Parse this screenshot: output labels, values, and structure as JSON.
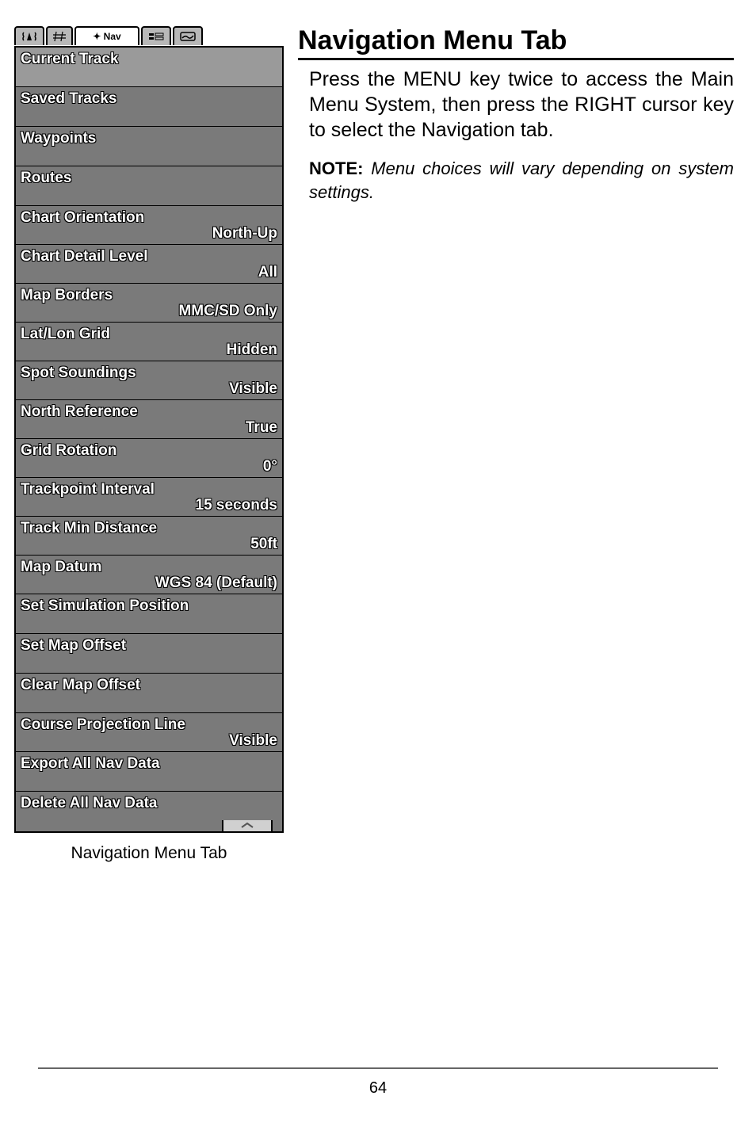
{
  "tabs": {
    "active_label": "✦ Nav"
  },
  "menu": [
    {
      "label": "Current Track",
      "value": "",
      "selected": true,
      "short": false
    },
    {
      "label": "Saved Tracks",
      "value": "",
      "short": false
    },
    {
      "label": "Waypoints",
      "value": "",
      "short": false
    },
    {
      "label": "Routes",
      "value": "",
      "short": false
    },
    {
      "label": "Chart Orientation",
      "value": "North-Up",
      "short": true
    },
    {
      "label": "Chart Detail Level",
      "value": "All",
      "short": true
    },
    {
      "label": "Map Borders",
      "value": "MMC/SD Only",
      "short": true
    },
    {
      "label": "Lat/Lon Grid",
      "value": "Hidden",
      "short": true
    },
    {
      "label": "Spot Soundings",
      "value": "Visible",
      "short": true
    },
    {
      "label": "North Reference",
      "value": "True",
      "short": true
    },
    {
      "label": "Grid Rotation",
      "value": "0°",
      "short": true
    },
    {
      "label": "Trackpoint Interval",
      "value": "15 seconds",
      "short": true
    },
    {
      "label": "Track Min Distance",
      "value": "50ft",
      "short": true
    },
    {
      "label": "Map Datum",
      "value": "WGS 84 (Default)",
      "short": true
    },
    {
      "label": "Set Simulation Position",
      "value": "",
      "short": false
    },
    {
      "label": "Set Map Offset",
      "value": "",
      "short": false
    },
    {
      "label": "Clear Map Offset",
      "value": "",
      "short": false
    },
    {
      "label": "Course Projection Line",
      "value": "Visible",
      "short": true
    },
    {
      "label": "Export All Nav Data",
      "value": "",
      "short": false
    },
    {
      "label": "Delete All Nav Data",
      "value": "",
      "short": false
    }
  ],
  "caption": "Navigation Menu Tab",
  "heading": "Navigation Menu Tab",
  "body": "Press the MENU key twice to access the Main Menu System, then press the RIGHT cursor key to select the Navigation tab.",
  "note_label": "NOTE:",
  "note_body": "Menu choices will vary depending on system settings.",
  "page_number": "64",
  "colors": {
    "menu_bg": "#7a7a7a",
    "selected_bg": "#9a9a9a",
    "text_white": "#ffffff",
    "rule": "#666666"
  }
}
